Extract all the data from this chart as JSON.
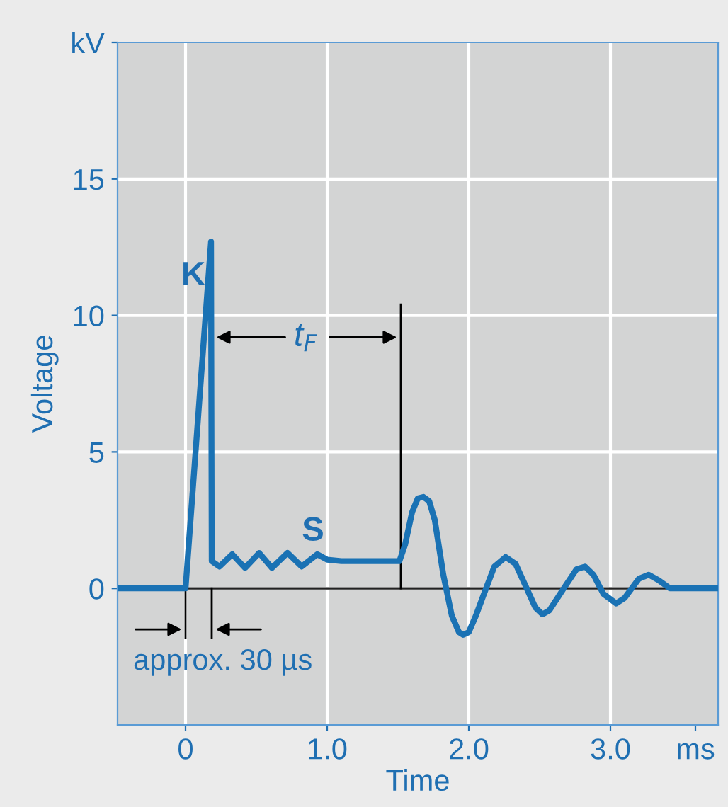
{
  "chart_data": {
    "type": "line",
    "xlabel": "Time",
    "ylabel": "Voltage",
    "x": [
      -0.48,
      0,
      0.18,
      0.185,
      0.24,
      0.33,
      0.42,
      0.52,
      0.61,
      0.72,
      0.82,
      0.93,
      1.0,
      1.1,
      1.51,
      1.55,
      1.6,
      1.64,
      1.68,
      1.72,
      1.76,
      1.82,
      1.88,
      1.93,
      1.96,
      2.0,
      2.05,
      2.1,
      2.18,
      2.26,
      2.33,
      2.4,
      2.47,
      2.52,
      2.57,
      2.67,
      2.76,
      2.82,
      2.88,
      2.95,
      3.04,
      3.1,
      3.2,
      3.27,
      3.34,
      3.42,
      3.76
    ],
    "series": [
      {
        "color": "#1a72b4",
        "values": [
          0,
          0,
          12.7,
          1.0,
          0.8,
          1.25,
          0.75,
          1.3,
          0.75,
          1.3,
          0.8,
          1.25,
          1.05,
          1.0,
          1.0,
          1.6,
          2.8,
          3.3,
          3.35,
          3.2,
          2.5,
          0.5,
          -1.0,
          -1.6,
          -1.7,
          -1.6,
          -1.0,
          -0.3,
          0.8,
          1.15,
          0.9,
          0.1,
          -0.7,
          -0.95,
          -0.8,
          0.0,
          0.7,
          0.8,
          0.5,
          -0.2,
          -0.55,
          -0.35,
          0.35,
          0.5,
          0.3,
          0,
          0
        ]
      }
    ],
    "xlim": [
      -0.48,
      3.76
    ],
    "ylim": [
      -5,
      20
    ],
    "xticks": [
      0,
      {
        "value": 1,
        "label": "1.0"
      },
      {
        "value": 2,
        "label": "2.0"
      },
      {
        "value": 3,
        "label": "3.0"
      },
      {
        "value": 3.6,
        "label": "ms"
      }
    ],
    "yticks": [
      0,
      5,
      10,
      15,
      {
        "value": 20,
        "label": "kV"
      }
    ],
    "grid": true,
    "ref_lines": [
      {
        "axis": "y",
        "value": 0,
        "color": "#222222"
      }
    ],
    "annotations": [
      {
        "text": "K",
        "x": 0.18,
        "y": 12.7
      },
      {
        "text": "S",
        "x": 0.95,
        "y": 1.3
      },
      {
        "text": "t$_{F}$",
        "x": 0.85,
        "y": 9.2
      },
      {
        "text": "approx. 30 µs",
        "x": 0,
        "y": 0
      }
    ]
  }
}
